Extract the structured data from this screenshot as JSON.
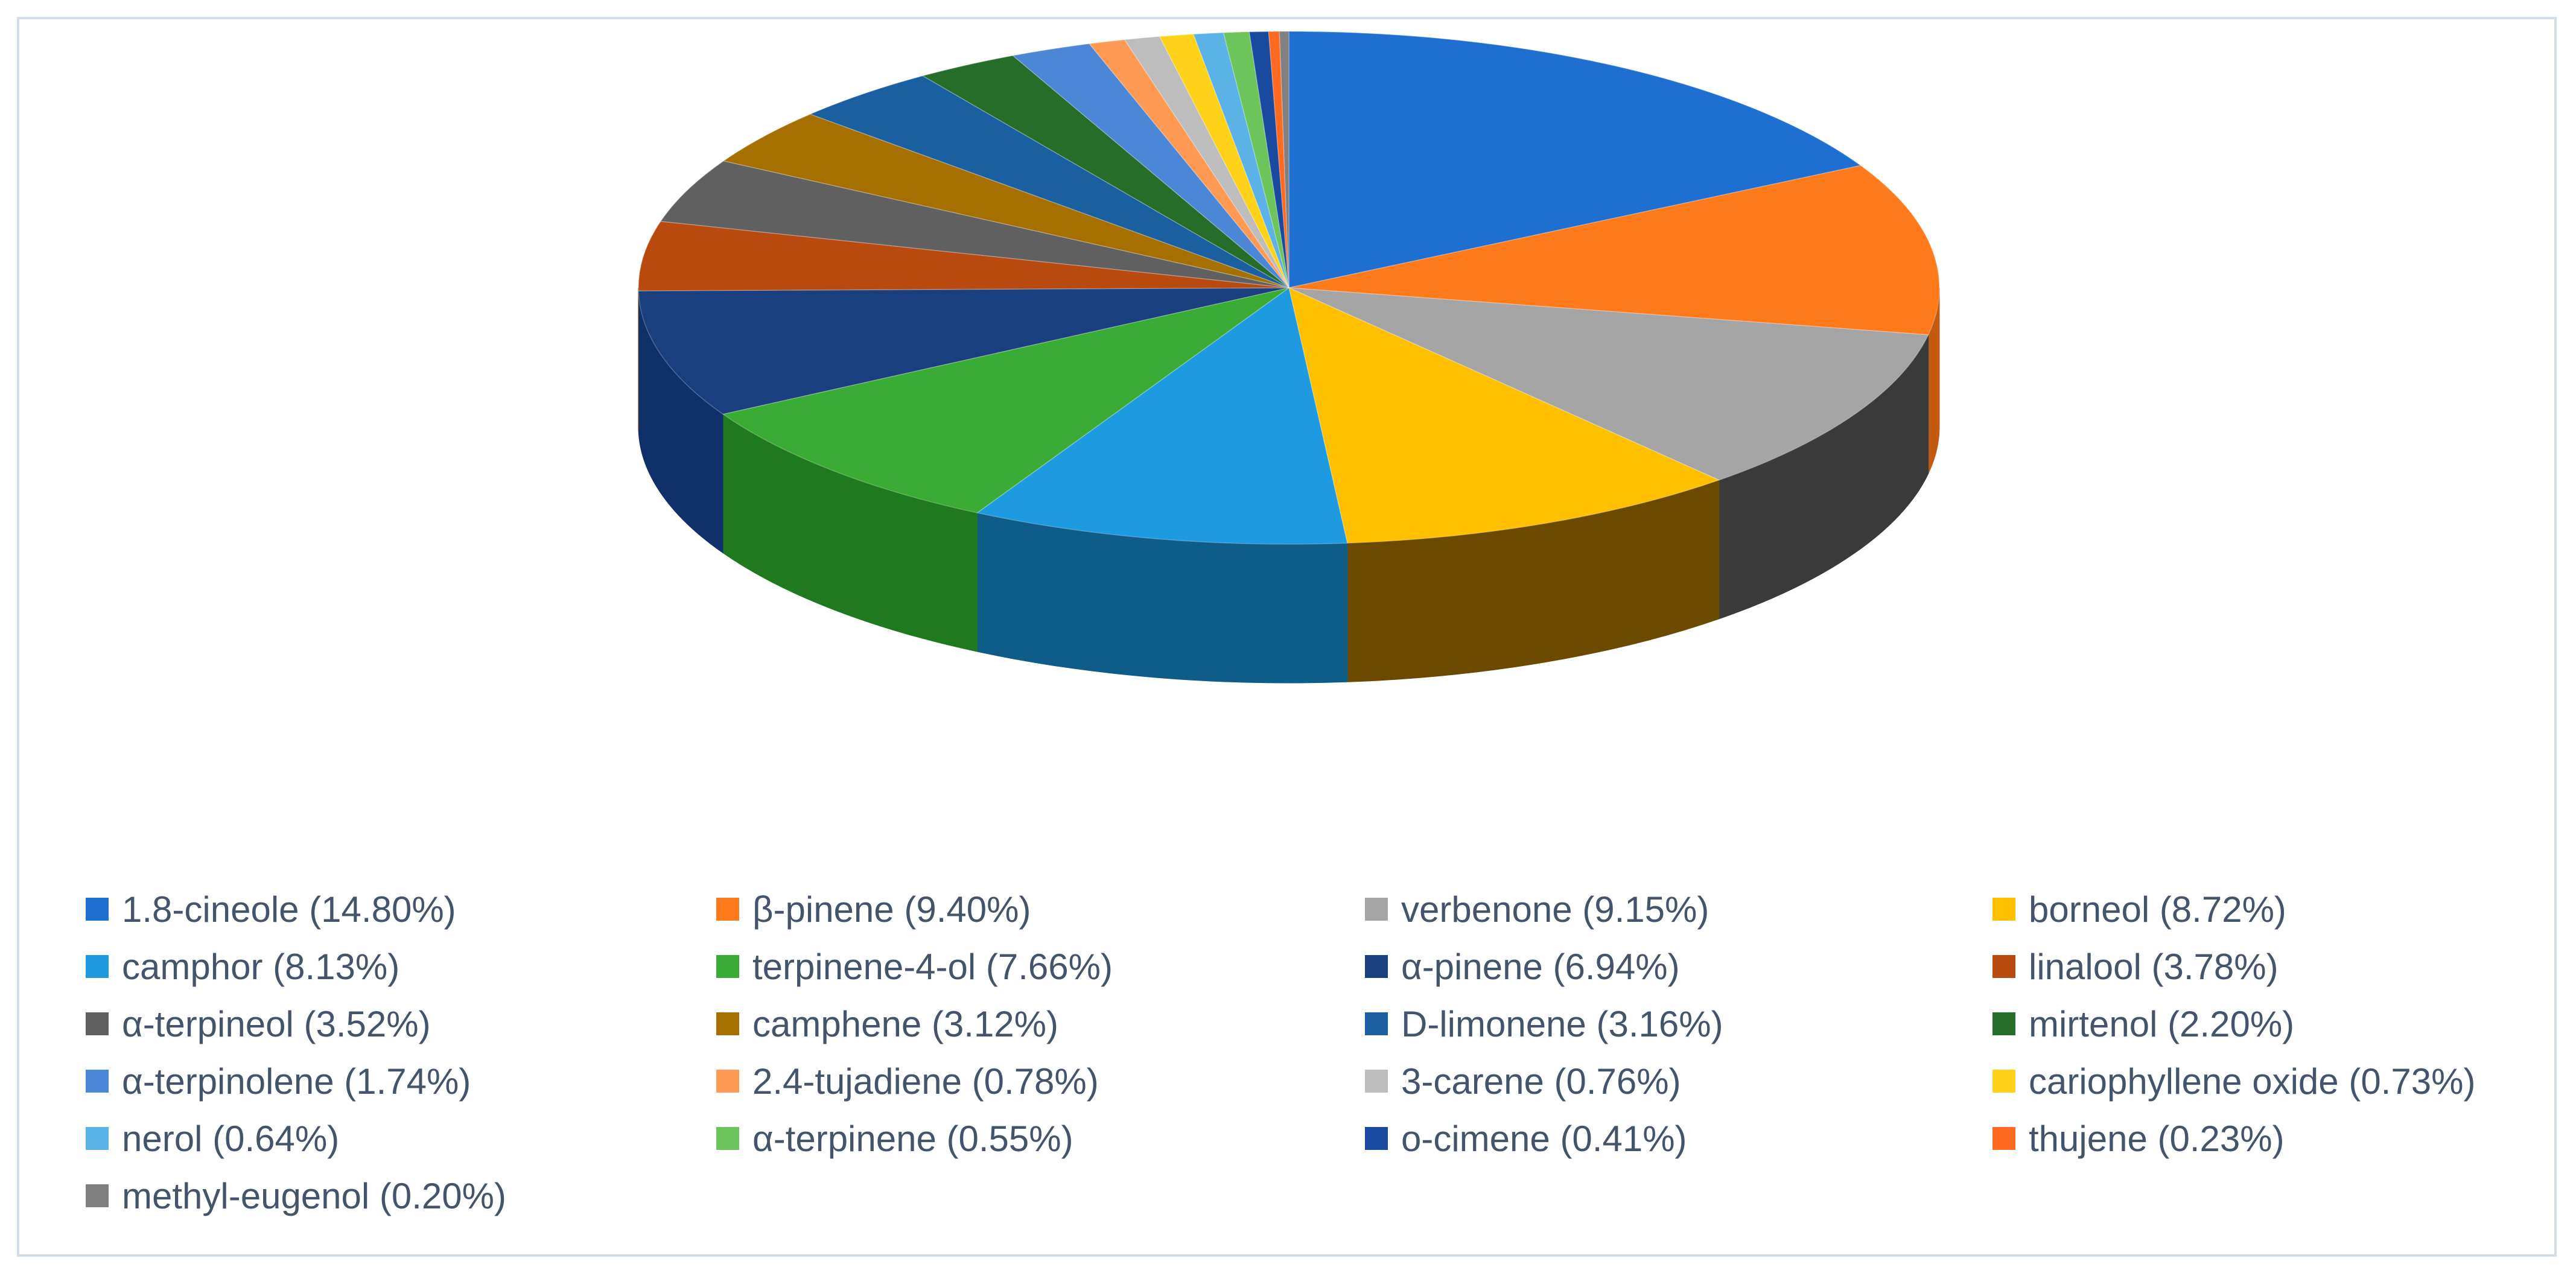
{
  "chart_data": {
    "type": "pie",
    "style": "3d",
    "title": "",
    "legend_position": "bottom",
    "categories": [
      "1.8-cineole",
      "β-pinene",
      "verbenone",
      "borneol",
      "camphor",
      "terpinene-4-ol",
      "α-pinene",
      "linalool",
      "α-terpineol",
      "camphene",
      "D-limonene",
      "mirtenol",
      "α-terpinolene",
      "2.4-tujadiene",
      "3-carene",
      "cariophyllene oxide",
      "nerol",
      "α-terpinene",
      "o-cimene",
      "thujene",
      "methyl-eugenol"
    ],
    "values": [
      14.8,
      9.4,
      9.15,
      8.72,
      8.13,
      7.66,
      6.94,
      3.78,
      3.52,
      3.12,
      3.16,
      2.2,
      1.74,
      0.78,
      0.76,
      0.73,
      0.64,
      0.55,
      0.41,
      0.23,
      0.2
    ],
    "legend_labels": [
      "1.8-cineole (14.80%)",
      "β-pinene (9.40%)",
      "verbenone (9.15%)",
      "borneol (8.72%)",
      "camphor (8.13%)",
      "terpinene-4-ol (7.66%)",
      "α-pinene (6.94%)",
      "linalool (3.78%)",
      "α-terpineol (3.52%)",
      "camphene (3.12%)",
      "D-limonene (3.16%)",
      "mirtenol (2.20%)",
      "α-terpinolene (1.74%)",
      "2.4-tujadiene (0.78%)",
      "3-carene (0.76%)",
      "cariophyllene oxide (0.73%)",
      "nerol (0.64%)",
      "α-terpinene (0.55%)",
      "o-cimene (0.41%)",
      "thujene (0.23%)",
      "methyl-eugenol (0.20%)"
    ],
    "colors": [
      "#1f6fd1",
      "#ff7a1a",
      "#a5a5a5",
      "#ffc000",
      "#1e9ae0",
      "#3aab34",
      "#1a3f7f",
      "#b84a10",
      "#606060",
      "#a57000",
      "#1a5f9f",
      "#266d2a",
      "#4b87d6",
      "#ff9a55",
      "#bdbdbd",
      "#ffd21a",
      "#5bb2e6",
      "#6cc45a",
      "#1a4aa0",
      "#ff6a20",
      "#808080"
    ],
    "edge_colors": [
      "#14529e",
      "#c45a10",
      "#3a3a3a",
      "#6b4a00",
      "#0e5c88",
      "#1f7a1f",
      "#10306a",
      "#7a3008",
      "#404040",
      "#6b4a00",
      "#0f4470",
      "#1a4d1d",
      "#2f5f9e",
      "#c4702f",
      "#808080",
      "#b08e00",
      "#2f7fb0",
      "#3f8f35",
      "#10306a",
      "#c44a10",
      "#505050"
    ]
  }
}
